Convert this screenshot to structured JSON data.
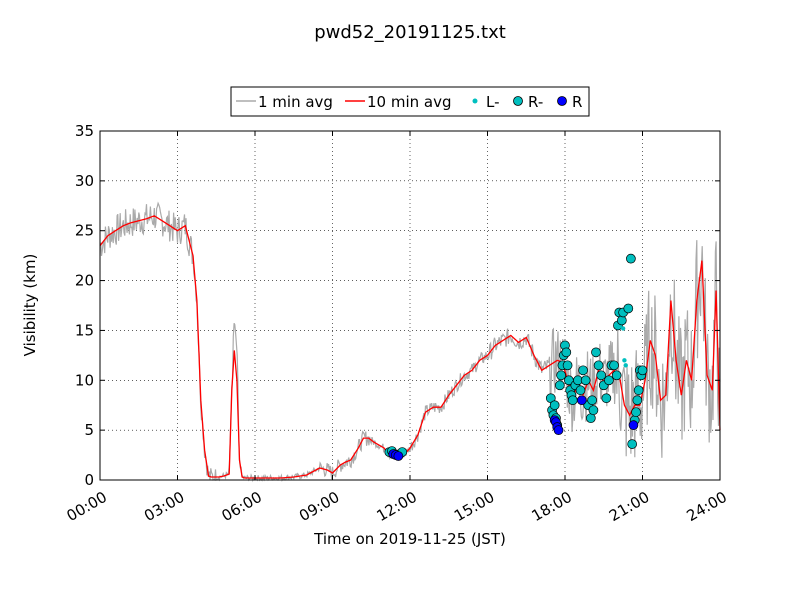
{
  "chart_data": {
    "type": "line",
    "title": "pwd52_20191125.txt",
    "xlabel": "Time on 2019-11-25 (JST)",
    "ylabel": "Visibility (km)",
    "x_unit": "hours",
    "xlim": [
      0,
      24
    ],
    "ylim": [
      0,
      35
    ],
    "xticks": [
      0,
      3,
      6,
      9,
      12,
      15,
      18,
      21,
      24
    ],
    "xtick_labels": [
      "00:00",
      "03:00",
      "06:00",
      "09:00",
      "12:00",
      "15:00",
      "18:00",
      "21:00",
      "24:00"
    ],
    "yticks": [
      0,
      5,
      10,
      15,
      20,
      25,
      30,
      35
    ],
    "ytick_labels": [
      "0",
      "5",
      "10",
      "15",
      "20",
      "25",
      "30",
      "35"
    ],
    "grid": true,
    "legend_position": "top-center",
    "legend": [
      "1 min avg",
      "10 min avg",
      "L-",
      "R-",
      "R"
    ],
    "colors": {
      "1 min avg": "#aaaaaa",
      "10 min avg": "#ff0000",
      "L-": "#00bfbf",
      "R-": "#00bfbf",
      "R": "#0000ff"
    },
    "series": [
      {
        "name": "10 min avg",
        "style": "line",
        "x": [
          0,
          0.3,
          0.6,
          0.9,
          1.2,
          1.5,
          1.8,
          2.1,
          2.4,
          2.7,
          3.0,
          3.3,
          3.6,
          3.75,
          3.9,
          4.05,
          4.2,
          4.3,
          4.4,
          4.6,
          4.8,
          5.0,
          5.1,
          5.2,
          5.3,
          5.4,
          5.5,
          5.6,
          5.7,
          5.8,
          5.9,
          6.0,
          6.5,
          7.0,
          7.5,
          8.0,
          8.5,
          8.8,
          9.0,
          9.3,
          9.5,
          9.7,
          10.0,
          10.2,
          10.4,
          10.6,
          10.8,
          11.0,
          11.2,
          11.5,
          11.8,
          12.0,
          12.3,
          12.6,
          12.9,
          13.2,
          13.5,
          13.8,
          14.1,
          14.4,
          14.7,
          15.0,
          15.3,
          15.6,
          15.9,
          16.2,
          16.5,
          16.8,
          17.1,
          17.4,
          17.7,
          17.9,
          18.1,
          18.3,
          18.5,
          18.7,
          18.9,
          19.1,
          19.3,
          19.5,
          19.7,
          19.9,
          20.1,
          20.3,
          20.5,
          20.7,
          20.9,
          21.1,
          21.3,
          21.5,
          21.7,
          21.9,
          22.1,
          22.3,
          22.5,
          22.7,
          22.9,
          23.1,
          23.3,
          23.5,
          23.7,
          23.85,
          24.0
        ],
        "y": [
          23.5,
          24.5,
          25.0,
          25.5,
          25.8,
          26.0,
          26.2,
          26.5,
          26.0,
          25.5,
          25.0,
          25.5,
          22.5,
          18.0,
          8.0,
          3.0,
          0.4,
          0.3,
          0.3,
          0.3,
          0.4,
          0.6,
          9.0,
          13.0,
          10.0,
          2.0,
          0.3,
          0.2,
          0.2,
          0.2,
          0.2,
          0.2,
          0.2,
          0.2,
          0.3,
          0.5,
          1.2,
          1.0,
          0.7,
          1.5,
          1.8,
          2.0,
          3.2,
          4.2,
          4.2,
          3.8,
          3.5,
          3.2,
          2.5,
          2.6,
          2.6,
          3.2,
          4.5,
          6.8,
          7.3,
          7.3,
          8.5,
          9.5,
          10.5,
          11.0,
          12.0,
          12.5,
          13.5,
          14.0,
          14.5,
          13.8,
          14.3,
          12.5,
          11.0,
          11.5,
          12.0,
          11.8,
          10.0,
          8.0,
          10.0,
          8.5,
          10.0,
          9.0,
          11.0,
          9.8,
          10.5,
          11.0,
          10.5,
          7.5,
          6.5,
          7.5,
          7.5,
          10.0,
          14.0,
          12.5,
          8.0,
          8.5,
          18.0,
          12.0,
          8.5,
          12.0,
          10.0,
          18.0,
          22.0,
          10.5,
          9.0,
          19.0,
          5.0
        ]
      },
      {
        "name": "R-",
        "style": "marker",
        "x": [
          11.2,
          11.3,
          11.4,
          11.5,
          11.6,
          11.7,
          17.45,
          17.5,
          17.55,
          17.6,
          17.65,
          17.7,
          17.8,
          17.85,
          17.9,
          17.95,
          18.0,
          18.05,
          18.1,
          18.15,
          18.2,
          18.25,
          18.3,
          18.4,
          18.5,
          18.6,
          18.7,
          18.8,
          18.9,
          19.0,
          19.05,
          19.1,
          19.2,
          19.3,
          19.4,
          19.5,
          19.6,
          19.7,
          19.8,
          19.9,
          20.0,
          20.05,
          20.1,
          20.2,
          20.25,
          20.45,
          20.55,
          20.6,
          20.7,
          20.75,
          20.8,
          20.85,
          20.9,
          20.95,
          21.0
        ],
        "y": [
          2.8,
          2.9,
          2.6,
          2.5,
          2.6,
          2.8,
          8.2,
          7.0,
          6.5,
          7.5,
          6.2,
          5.5,
          9.5,
          10.5,
          11.5,
          12.5,
          13.5,
          12.8,
          11.5,
          10.0,
          9.0,
          8.5,
          8.0,
          9.5,
          10.0,
          9.0,
          11.0,
          10.0,
          7.5,
          6.2,
          8.0,
          7.0,
          12.8,
          11.5,
          10.5,
          9.5,
          8.2,
          10.0,
          11.5,
          11.5,
          10.5,
          15.5,
          16.8,
          16.0,
          16.8,
          17.2,
          22.2,
          3.6,
          6.0,
          6.8,
          8.0,
          9.0,
          11.0,
          10.5,
          11.0
        ]
      },
      {
        "name": "R",
        "style": "marker",
        "x": [
          11.35,
          11.45,
          11.55,
          17.6,
          17.65,
          17.7,
          17.75,
          18.65,
          20.65
        ],
        "y": [
          2.6,
          2.5,
          2.4,
          6.0,
          5.8,
          5.3,
          5.0,
          8.0,
          5.5
        ]
      },
      {
        "name": "L-",
        "style": "marker",
        "x": [
          20.25,
          20.3,
          20.35
        ],
        "y": [
          15.2,
          12.0,
          11.5
        ]
      }
    ]
  }
}
